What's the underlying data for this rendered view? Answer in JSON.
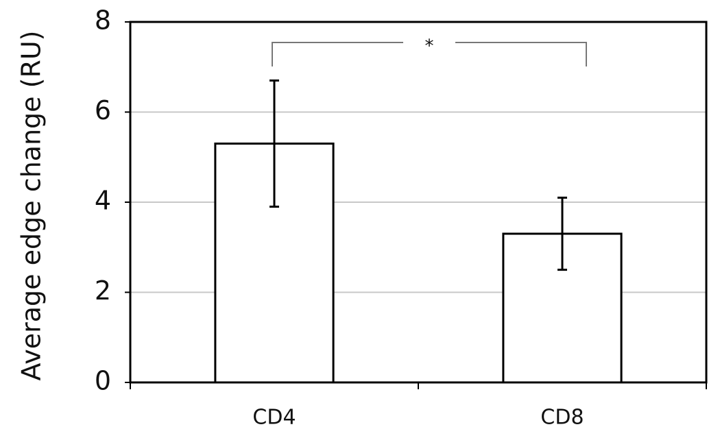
{
  "chart_data": {
    "type": "bar",
    "ylabel": "Average edge change (RU)",
    "categories": [
      "CD4",
      "CD8"
    ],
    "series": [
      {
        "values": [
          5.3,
          3.3
        ],
        "errors": [
          1.4,
          0.8
        ],
        "color": "#ffffff"
      }
    ],
    "ylim": [
      0,
      8
    ],
    "yticks": [
      0,
      2,
      4,
      6,
      8
    ],
    "grid": true,
    "significance": {
      "label": "*"
    }
  }
}
